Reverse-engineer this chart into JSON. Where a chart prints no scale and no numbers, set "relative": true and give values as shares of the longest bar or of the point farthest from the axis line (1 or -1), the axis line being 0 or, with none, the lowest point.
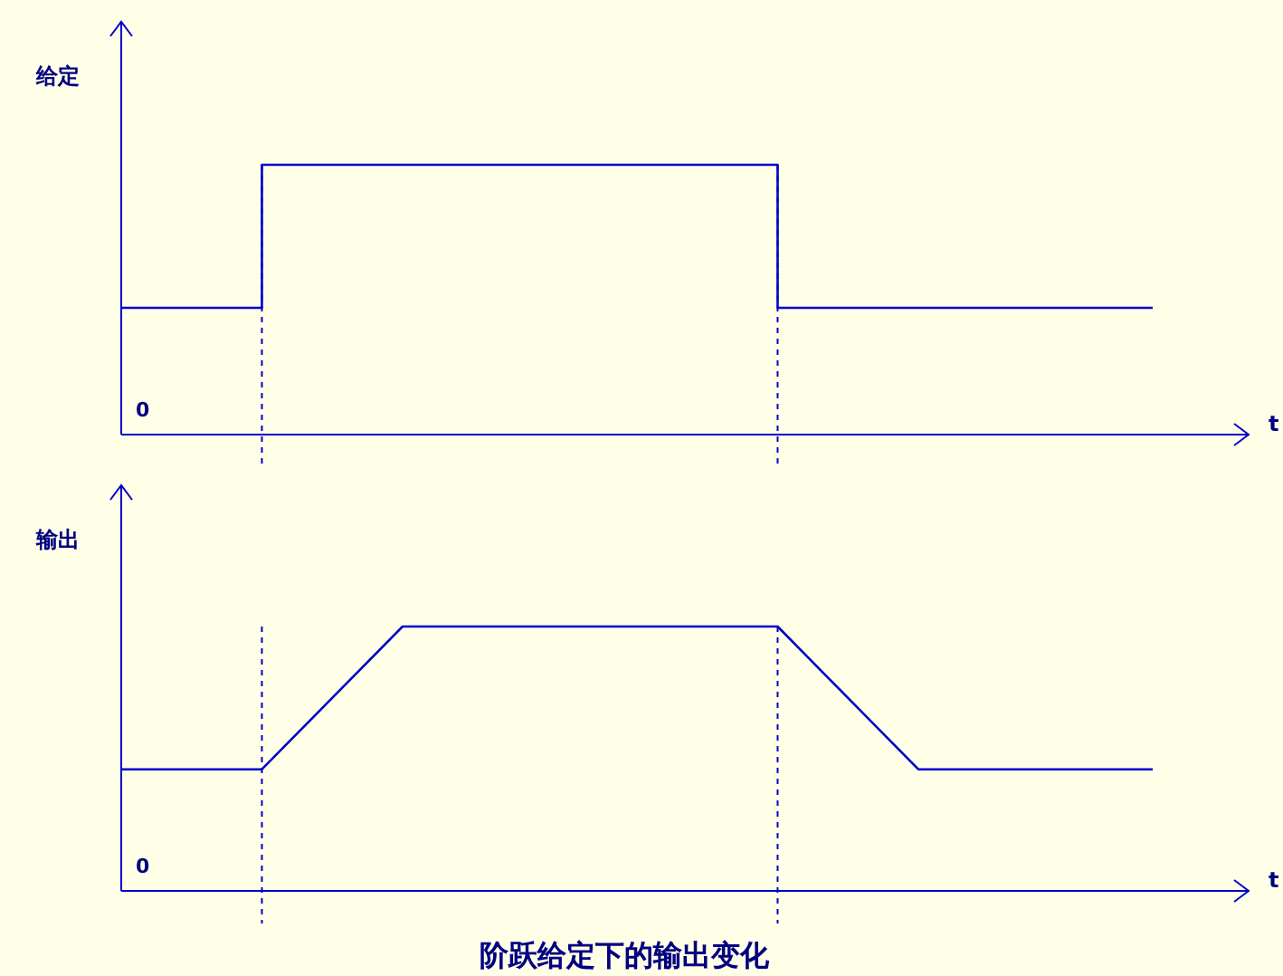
{
  "chart_data": [
    {
      "type": "step",
      "relative": true,
      "ylabel": "给定",
      "xlabel": "t",
      "categories": [
        null,
        null,
        null,
        null,
        null,
        null,
        null,
        null,
        null,
        null,
        null,
        null,
        null,
        null,
        null,
        null,
        null,
        null,
        null,
        null,
        null,
        null,
        null
      ],
      "series": [
        {
          "color": "#0000cc",
          "values": [
            0.47,
            0.47,
            0.47,
            1,
            1,
            1,
            1,
            1,
            1,
            1,
            1,
            1,
            1,
            1,
            0.47,
            0.47,
            0.47,
            0.47,
            0.47,
            0.47,
            0.47,
            0.47,
            0.47
          ]
        }
      ],
      "annotations": [
        "0"
      ]
    },
    {
      "type": "line",
      "relative": true,
      "ylabel": "输出",
      "xlabel": "t",
      "categories": [
        null,
        null,
        null,
        null,
        null,
        null,
        null,
        null,
        null,
        null,
        null,
        null,
        null,
        null,
        null,
        null,
        null,
        null,
        null,
        null,
        null,
        null,
        null
      ],
      "series": [
        {
          "color": "#0000cc",
          "values": [
            0.46,
            0.46,
            0.46,
            0.46,
            0.64,
            0.82,
            1,
            1,
            1,
            1,
            1,
            1,
            1,
            1,
            1,
            0.82,
            0.64,
            0.46,
            0.46,
            0.46,
            0.46,
            0.46,
            0.46
          ]
        }
      ],
      "annotations": [
        "0",
        "阶跃给定下的输出变化"
      ]
    }
  ]
}
